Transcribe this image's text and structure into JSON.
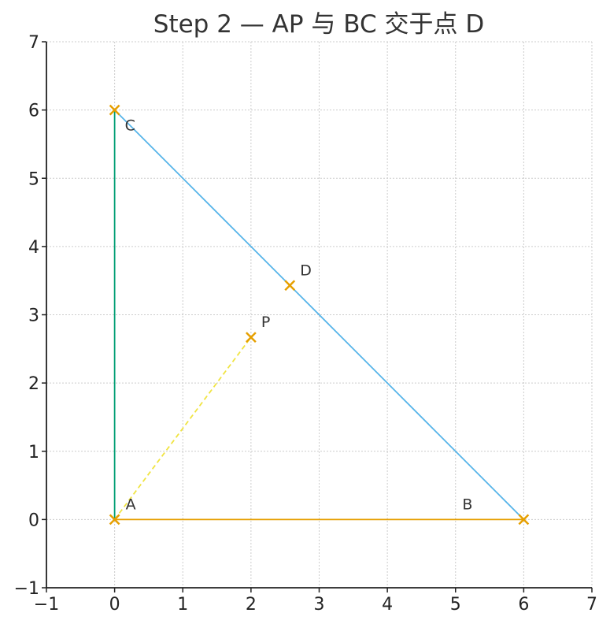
{
  "chart_data": {
    "type": "scatter",
    "title": "Step 2 — AP 与 BC 交于点 D",
    "xlabel": "",
    "ylabel": "",
    "xlim": [
      -1,
      7
    ],
    "ylim": [
      -1,
      7
    ],
    "xticks": [
      -1,
      0,
      1,
      2,
      3,
      4,
      5,
      6,
      7
    ],
    "yticks": [
      -1,
      0,
      1,
      2,
      3,
      4,
      5,
      6,
      7
    ],
    "xtick_labels": [
      "−1",
      "0",
      "1",
      "2",
      "3",
      "4",
      "5",
      "6",
      "7"
    ],
    "ytick_labels": [
      "−1",
      "0",
      "1",
      "2",
      "3",
      "4",
      "5",
      "6",
      "7"
    ],
    "grid": true,
    "points": [
      {
        "label": "A",
        "x": 0,
        "y": 0
      },
      {
        "label": "B",
        "x": 6,
        "y": 0
      },
      {
        "label": "C",
        "x": 0,
        "y": 6
      },
      {
        "label": "P",
        "x": 2,
        "y": 2.67
      },
      {
        "label": "D",
        "x": 2.57,
        "y": 3.43
      }
    ],
    "segments": [
      {
        "from": "A",
        "to": "B",
        "color": "#E69F00",
        "style": "solid"
      },
      {
        "from": "B",
        "to": "C",
        "color": "#56B4E9",
        "style": "solid"
      },
      {
        "from": "C",
        "to": "A",
        "color": "#009E73",
        "style": "solid"
      },
      {
        "from": "A",
        "to": "P",
        "color": "#F0E442",
        "style": "dashed"
      }
    ],
    "marker_color": "#E69F00"
  }
}
